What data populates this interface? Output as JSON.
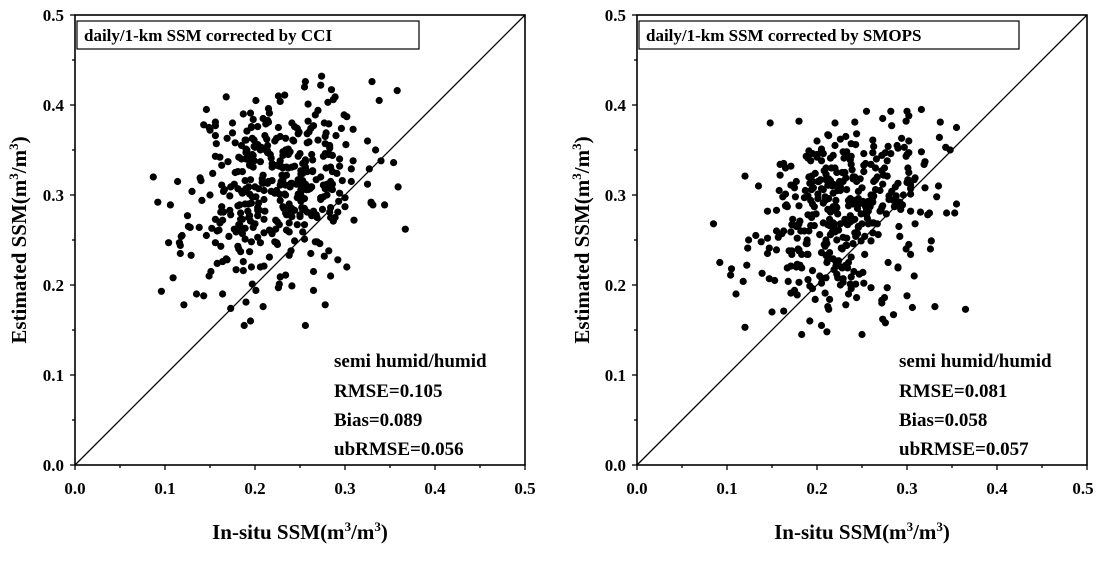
{
  "chart_data": [
    {
      "type": "scatter",
      "title": "daily/1-km SSM corrected by CCI",
      "xlabel": "In-situ SSM(m³/m³)",
      "ylabel": "Estimated SSM(m³/m³)",
      "xlabel_parts": {
        "prefix": "In-situ SSM(m",
        "sup1": "3",
        "mid": "/m",
        "sup2": "3",
        "suffix": ")"
      },
      "ylabel_parts": {
        "prefix": "Estimated SSM(m",
        "sup1": "3",
        "mid": "/m",
        "sup2": "3",
        "suffix": ")"
      },
      "xlim": [
        0.0,
        0.5
      ],
      "ylim": [
        0.0,
        0.5
      ],
      "x_ticks": [
        "0.0",
        "0.1",
        "0.2",
        "0.3",
        "0.4",
        "0.5"
      ],
      "y_ticks": [
        "0.0",
        "0.1",
        "0.2",
        "0.3",
        "0.4",
        "0.5"
      ],
      "reference_line": "1:1",
      "stats": [
        "semi humid/humid",
        "RMSE=0.105",
        "Bias=0.089",
        "ubRMSE=0.056"
      ],
      "seed": 11,
      "cluster": {
        "x_mean": 0.225,
        "x_sd": 0.048,
        "y_mean": 0.315,
        "y_sd": 0.052,
        "x_range": [
          0.09,
          0.36
        ],
        "y_range": [
          0.155,
          0.43
        ],
        "n": 430
      },
      "points": [
        [
          0.087,
          0.32
        ],
        [
          0.092,
          0.292
        ],
        [
          0.121,
          0.178
        ],
        [
          0.135,
          0.19
        ],
        [
          0.143,
          0.188
        ],
        [
          0.168,
          0.409
        ],
        [
          0.188,
          0.155
        ],
        [
          0.195,
          0.16
        ],
        [
          0.209,
          0.176
        ],
        [
          0.256,
          0.155
        ],
        [
          0.274,
          0.432
        ],
        [
          0.278,
          0.178
        ],
        [
          0.33,
          0.426
        ],
        [
          0.338,
          0.405
        ],
        [
          0.354,
          0.336
        ],
        [
          0.358,
          0.416
        ],
        [
          0.367,
          0.262
        ],
        [
          0.325,
          0.312
        ],
        [
          0.31,
          0.272
        ],
        [
          0.302,
          0.22
        ],
        [
          0.292,
          0.228
        ],
        [
          0.282,
          0.238
        ],
        [
          0.265,
          0.282
        ],
        [
          0.25,
          0.276
        ],
        [
          0.146,
          0.395
        ],
        [
          0.151,
          0.215
        ],
        [
          0.158,
          0.224
        ],
        [
          0.117,
          0.235
        ],
        [
          0.109,
          0.208
        ],
        [
          0.128,
          0.264
        ]
      ]
    },
    {
      "type": "scatter",
      "title": "daily/1-km SSM corrected by SMOPS",
      "xlabel": "In-situ SSM(m³/m³)",
      "ylabel": "Estimated SSM(m³/m³)",
      "xlabel_parts": {
        "prefix": "In-situ SSM(m",
        "sup1": "3",
        "mid": "/m",
        "sup2": "3",
        "suffix": ")"
      },
      "ylabel_parts": {
        "prefix": "Estimated SSM(m",
        "sup1": "3",
        "mid": "/m",
        "sup2": "3",
        "suffix": ")"
      },
      "xlim": [
        0.0,
        0.5
      ],
      "ylim": [
        0.0,
        0.5
      ],
      "x_ticks": [
        "0.0",
        "0.1",
        "0.2",
        "0.3",
        "0.4",
        "0.5"
      ],
      "y_ticks": [
        "0.0",
        "0.1",
        "0.2",
        "0.3",
        "0.4",
        "0.5"
      ],
      "reference_line": "1:1",
      "stats": [
        "semi humid/humid",
        "RMSE=0.081",
        "Bias=0.058",
        "ubRMSE=0.057"
      ],
      "seed": 29,
      "cluster": {
        "x_mean": 0.225,
        "x_sd": 0.045,
        "y_mean": 0.28,
        "y_sd": 0.05,
        "x_range": [
          0.085,
          0.36
        ],
        "y_range": [
          0.145,
          0.395
        ],
        "n": 430
      },
      "points": [
        [
          0.085,
          0.268
        ],
        [
          0.092,
          0.225
        ],
        [
          0.12,
          0.153
        ],
        [
          0.148,
          0.38
        ],
        [
          0.18,
          0.382
        ],
        [
          0.183,
          0.145
        ],
        [
          0.205,
          0.155
        ],
        [
          0.25,
          0.145
        ],
        [
          0.282,
          0.393
        ],
        [
          0.3,
          0.393
        ],
        [
          0.316,
          0.395
        ],
        [
          0.348,
          0.35
        ],
        [
          0.355,
          0.375
        ],
        [
          0.355,
          0.29
        ],
        [
          0.365,
          0.173
        ],
        [
          0.308,
          0.21
        ],
        [
          0.3,
          0.188
        ],
        [
          0.29,
          0.22
        ],
        [
          0.276,
          0.158
        ],
        [
          0.11,
          0.19
        ],
        [
          0.118,
          0.204
        ],
        [
          0.135,
          0.31
        ],
        [
          0.124,
          0.25
        ],
        [
          0.15,
          0.17
        ],
        [
          0.325,
          0.28
        ],
        [
          0.335,
          0.31
        ],
        [
          0.244,
          0.368
        ],
        [
          0.232,
          0.178
        ],
        [
          0.165,
          0.33
        ],
        [
          0.2,
          0.36
        ]
      ]
    }
  ]
}
